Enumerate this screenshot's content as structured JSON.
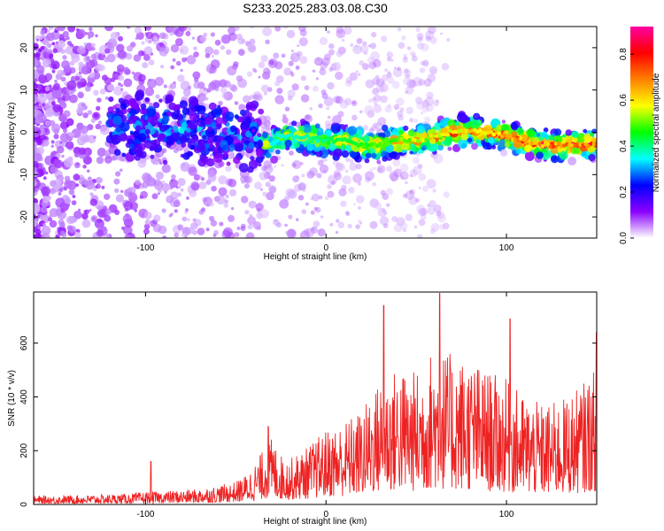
{
  "title": "S233.2025.283.03.08.C30",
  "chart_data": [
    {
      "type": "heatmap",
      "xlabel": "Height of straight line (km)",
      "ylabel": "Frequency (Hz)",
      "xlim": [
        -162,
        150
      ],
      "ylim": [
        -25,
        25
      ],
      "x_ticks": [
        -100,
        0,
        100
      ],
      "y_ticks": [
        -20,
        -10,
        0,
        10,
        20
      ],
      "colorbar": {
        "label": "Normalized spectral amplitude",
        "range": [
          0.0,
          0.92
        ],
        "ticks": [
          0.0,
          0.2,
          0.4,
          0.6,
          0.8
        ],
        "colors": [
          "#ffffff",
          "#8a00ff",
          "#0000ff",
          "#00ffff",
          "#00ff00",
          "#ffff00",
          "#ff8000",
          "#ff0000",
          "#ff00a0"
        ]
      },
      "ridge": {
        "x": [
          -120,
          -100,
          -90,
          -80,
          -70,
          -60,
          -50,
          -40,
          -35,
          -30,
          -25,
          -20,
          -10,
          0,
          10,
          20,
          30,
          40,
          50,
          60,
          70,
          80,
          90,
          100,
          110,
          120,
          130,
          140,
          150
        ],
        "y": [
          1,
          1,
          1,
          0.5,
          0.5,
          0,
          -1,
          -1,
          -3,
          -3,
          -1,
          -1,
          -1,
          -2,
          -2,
          -3,
          -3,
          -2,
          -2,
          -1,
          0,
          0.5,
          0,
          -1,
          -2,
          -3,
          -3,
          -3,
          -3
        ]
      }
    },
    {
      "type": "line",
      "xlabel": "Height of straight line (km)",
      "ylabel": "SNR (10 * v/v)",
      "xlim": [
        -162,
        150
      ],
      "ylim": [
        0,
        790
      ],
      "x_ticks": [
        -100,
        0,
        100
      ],
      "y_ticks": [
        0,
        200,
        400,
        600
      ],
      "color": "#ee2222",
      "envelope": {
        "x": [
          -162,
          -140,
          -120,
          -110,
          -100,
          -90,
          -80,
          -70,
          -60,
          -50,
          -45,
          -40,
          -35,
          -30,
          -25,
          -20,
          -10,
          0,
          10,
          20,
          30,
          40,
          50,
          60,
          70,
          80,
          90,
          100,
          110,
          120,
          130,
          140,
          150
        ],
        "y": [
          20,
          22,
          24,
          26,
          30,
          32,
          34,
          38,
          45,
          55,
          70,
          95,
          130,
          160,
          120,
          110,
          140,
          180,
          200,
          230,
          300,
          330,
          320,
          380,
          360,
          350,
          320,
          300,
          260,
          240,
          250,
          280,
          330
        ]
      },
      "peaks": [
        {
          "x": -97,
          "y": 160
        },
        {
          "x": -32,
          "y": 290
        },
        {
          "x": 32,
          "y": 740
        },
        {
          "x": 63,
          "y": 785
        },
        {
          "x": 102,
          "y": 690
        },
        {
          "x": 150,
          "y": 640
        }
      ]
    }
  ]
}
